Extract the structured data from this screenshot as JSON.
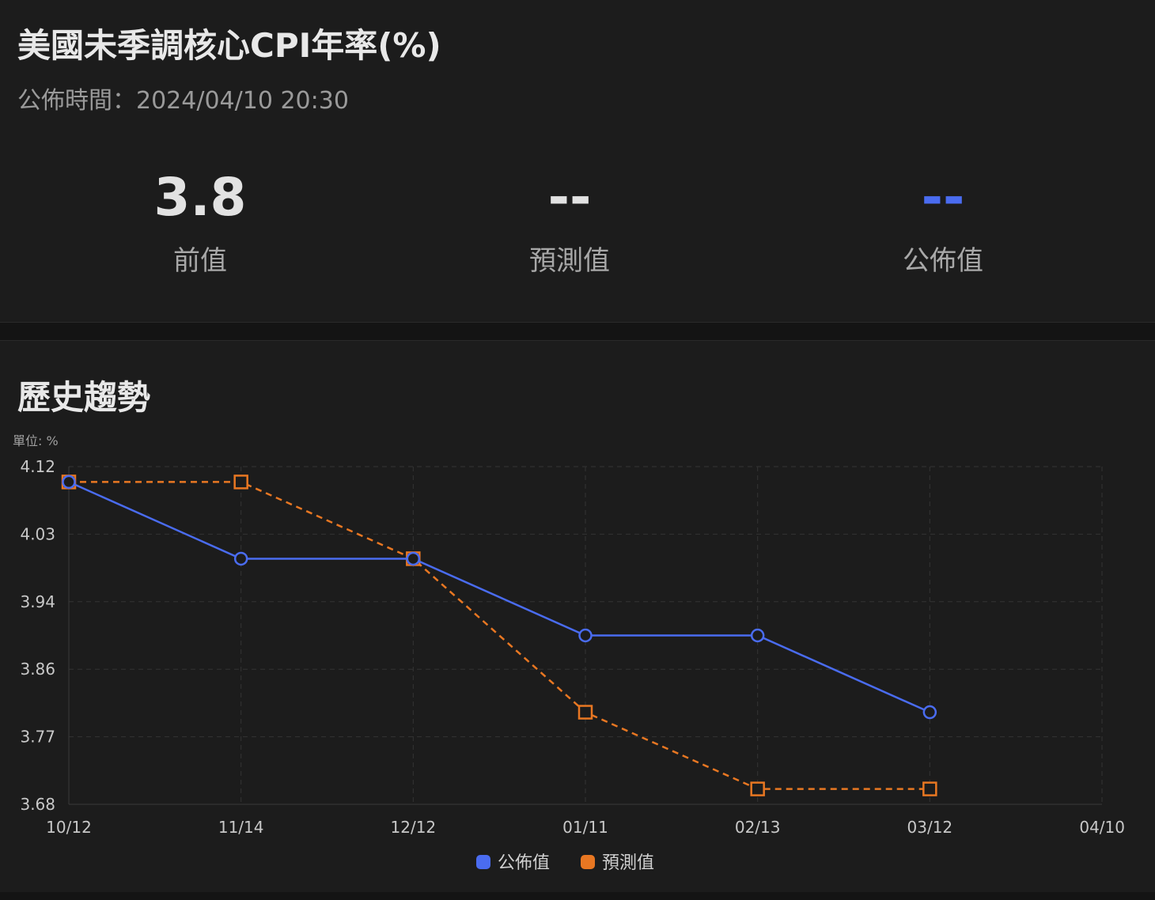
{
  "header": {
    "title": "美國未季調核心CPI年率(%)",
    "release_label": "公佈時間：",
    "release_time": "2024/04/10 20:30"
  },
  "stats": [
    {
      "value": "3.8",
      "label": "前值",
      "color": "#e2e2e2"
    },
    {
      "value": "--",
      "label": "預測值",
      "color": "#e2e2e2"
    },
    {
      "value": "--",
      "label": "公佈值",
      "color": "#4a6cf0"
    }
  ],
  "section": {
    "title": "歷史趨勢"
  },
  "chart_data": {
    "type": "line",
    "unit_label": "單位: %",
    "categories": [
      "10/12",
      "11/14",
      "12/12",
      "01/11",
      "02/13",
      "03/12",
      "04/10"
    ],
    "y_ticks": [
      "4.12",
      "4.03",
      "3.94",
      "3.86",
      "3.77",
      "3.68"
    ],
    "ylim": [
      3.68,
      4.12
    ],
    "grid": true,
    "legend_position": "bottom",
    "series": [
      {
        "name": "公佈值",
        "color": "#4a6cf0",
        "dashed": false,
        "marker": "circle",
        "values": [
          4.1,
          4.0,
          4.0,
          3.9,
          3.9,
          3.8,
          null
        ]
      },
      {
        "name": "預測值",
        "color": "#e87722",
        "dashed": true,
        "marker": "square",
        "values": [
          4.1,
          4.1,
          4.0,
          3.8,
          3.7,
          3.7,
          null
        ]
      }
    ]
  }
}
